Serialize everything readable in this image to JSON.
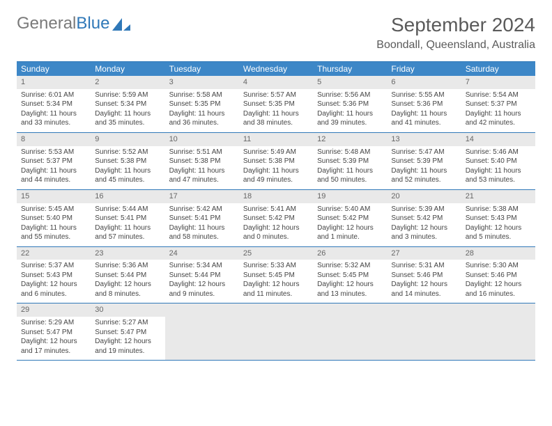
{
  "logo": {
    "word1": "General",
    "word2": "Blue"
  },
  "title": "September 2024",
  "location": "Boondall, Queensland, Australia",
  "colors": {
    "header_bg": "#3d87c7",
    "header_text": "#ffffff",
    "border": "#2f78b8",
    "daynum_bg": "#e9e9e9",
    "text": "#444444",
    "logo_gray": "#7a7a7a",
    "logo_blue": "#2f78b8"
  },
  "daysOfWeek": [
    "Sunday",
    "Monday",
    "Tuesday",
    "Wednesday",
    "Thursday",
    "Friday",
    "Saturday"
  ],
  "weeks": [
    [
      {
        "n": "1",
        "sr": "Sunrise: 6:01 AM",
        "ss": "Sunset: 5:34 PM",
        "dl1": "Daylight: 11 hours",
        "dl2": "and 33 minutes."
      },
      {
        "n": "2",
        "sr": "Sunrise: 5:59 AM",
        "ss": "Sunset: 5:34 PM",
        "dl1": "Daylight: 11 hours",
        "dl2": "and 35 minutes."
      },
      {
        "n": "3",
        "sr": "Sunrise: 5:58 AM",
        "ss": "Sunset: 5:35 PM",
        "dl1": "Daylight: 11 hours",
        "dl2": "and 36 minutes."
      },
      {
        "n": "4",
        "sr": "Sunrise: 5:57 AM",
        "ss": "Sunset: 5:35 PM",
        "dl1": "Daylight: 11 hours",
        "dl2": "and 38 minutes."
      },
      {
        "n": "5",
        "sr": "Sunrise: 5:56 AM",
        "ss": "Sunset: 5:36 PM",
        "dl1": "Daylight: 11 hours",
        "dl2": "and 39 minutes."
      },
      {
        "n": "6",
        "sr": "Sunrise: 5:55 AM",
        "ss": "Sunset: 5:36 PM",
        "dl1": "Daylight: 11 hours",
        "dl2": "and 41 minutes."
      },
      {
        "n": "7",
        "sr": "Sunrise: 5:54 AM",
        "ss": "Sunset: 5:37 PM",
        "dl1": "Daylight: 11 hours",
        "dl2": "and 42 minutes."
      }
    ],
    [
      {
        "n": "8",
        "sr": "Sunrise: 5:53 AM",
        "ss": "Sunset: 5:37 PM",
        "dl1": "Daylight: 11 hours",
        "dl2": "and 44 minutes."
      },
      {
        "n": "9",
        "sr": "Sunrise: 5:52 AM",
        "ss": "Sunset: 5:38 PM",
        "dl1": "Daylight: 11 hours",
        "dl2": "and 45 minutes."
      },
      {
        "n": "10",
        "sr": "Sunrise: 5:51 AM",
        "ss": "Sunset: 5:38 PM",
        "dl1": "Daylight: 11 hours",
        "dl2": "and 47 minutes."
      },
      {
        "n": "11",
        "sr": "Sunrise: 5:49 AM",
        "ss": "Sunset: 5:38 PM",
        "dl1": "Daylight: 11 hours",
        "dl2": "and 49 minutes."
      },
      {
        "n": "12",
        "sr": "Sunrise: 5:48 AM",
        "ss": "Sunset: 5:39 PM",
        "dl1": "Daylight: 11 hours",
        "dl2": "and 50 minutes."
      },
      {
        "n": "13",
        "sr": "Sunrise: 5:47 AM",
        "ss": "Sunset: 5:39 PM",
        "dl1": "Daylight: 11 hours",
        "dl2": "and 52 minutes."
      },
      {
        "n": "14",
        "sr": "Sunrise: 5:46 AM",
        "ss": "Sunset: 5:40 PM",
        "dl1": "Daylight: 11 hours",
        "dl2": "and 53 minutes."
      }
    ],
    [
      {
        "n": "15",
        "sr": "Sunrise: 5:45 AM",
        "ss": "Sunset: 5:40 PM",
        "dl1": "Daylight: 11 hours",
        "dl2": "and 55 minutes."
      },
      {
        "n": "16",
        "sr": "Sunrise: 5:44 AM",
        "ss": "Sunset: 5:41 PM",
        "dl1": "Daylight: 11 hours",
        "dl2": "and 57 minutes."
      },
      {
        "n": "17",
        "sr": "Sunrise: 5:42 AM",
        "ss": "Sunset: 5:41 PM",
        "dl1": "Daylight: 11 hours",
        "dl2": "and 58 minutes."
      },
      {
        "n": "18",
        "sr": "Sunrise: 5:41 AM",
        "ss": "Sunset: 5:42 PM",
        "dl1": "Daylight: 12 hours",
        "dl2": "and 0 minutes."
      },
      {
        "n": "19",
        "sr": "Sunrise: 5:40 AM",
        "ss": "Sunset: 5:42 PM",
        "dl1": "Daylight: 12 hours",
        "dl2": "and 1 minute."
      },
      {
        "n": "20",
        "sr": "Sunrise: 5:39 AM",
        "ss": "Sunset: 5:42 PM",
        "dl1": "Daylight: 12 hours",
        "dl2": "and 3 minutes."
      },
      {
        "n": "21",
        "sr": "Sunrise: 5:38 AM",
        "ss": "Sunset: 5:43 PM",
        "dl1": "Daylight: 12 hours",
        "dl2": "and 5 minutes."
      }
    ],
    [
      {
        "n": "22",
        "sr": "Sunrise: 5:37 AM",
        "ss": "Sunset: 5:43 PM",
        "dl1": "Daylight: 12 hours",
        "dl2": "and 6 minutes."
      },
      {
        "n": "23",
        "sr": "Sunrise: 5:36 AM",
        "ss": "Sunset: 5:44 PM",
        "dl1": "Daylight: 12 hours",
        "dl2": "and 8 minutes."
      },
      {
        "n": "24",
        "sr": "Sunrise: 5:34 AM",
        "ss": "Sunset: 5:44 PM",
        "dl1": "Daylight: 12 hours",
        "dl2": "and 9 minutes."
      },
      {
        "n": "25",
        "sr": "Sunrise: 5:33 AM",
        "ss": "Sunset: 5:45 PM",
        "dl1": "Daylight: 12 hours",
        "dl2": "and 11 minutes."
      },
      {
        "n": "26",
        "sr": "Sunrise: 5:32 AM",
        "ss": "Sunset: 5:45 PM",
        "dl1": "Daylight: 12 hours",
        "dl2": "and 13 minutes."
      },
      {
        "n": "27",
        "sr": "Sunrise: 5:31 AM",
        "ss": "Sunset: 5:46 PM",
        "dl1": "Daylight: 12 hours",
        "dl2": "and 14 minutes."
      },
      {
        "n": "28",
        "sr": "Sunrise: 5:30 AM",
        "ss": "Sunset: 5:46 PM",
        "dl1": "Daylight: 12 hours",
        "dl2": "and 16 minutes."
      }
    ],
    [
      {
        "n": "29",
        "sr": "Sunrise: 5:29 AM",
        "ss": "Sunset: 5:47 PM",
        "dl1": "Daylight: 12 hours",
        "dl2": "and 17 minutes."
      },
      {
        "n": "30",
        "sr": "Sunrise: 5:27 AM",
        "ss": "Sunset: 5:47 PM",
        "dl1": "Daylight: 12 hours",
        "dl2": "and 19 minutes."
      },
      null,
      null,
      null,
      null,
      null
    ]
  ]
}
